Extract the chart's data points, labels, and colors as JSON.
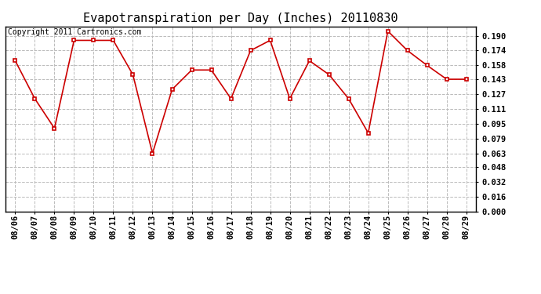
{
  "title": "Evapotranspiration per Day (Inches) 20110830",
  "copyright_text": "Copyright 2011 Cartronics.com",
  "x_labels": [
    "08/06",
    "08/07",
    "08/08",
    "08/09",
    "08/10",
    "08/11",
    "08/12",
    "08/13",
    "08/14",
    "08/15",
    "08/16",
    "08/17",
    "08/18",
    "08/19",
    "08/20",
    "08/21",
    "08/22",
    "08/23",
    "08/24",
    "08/25",
    "08/26",
    "08/27",
    "08/28",
    "08/29"
  ],
  "y_values": [
    0.163,
    0.122,
    0.09,
    0.185,
    0.185,
    0.185,
    0.148,
    0.063,
    0.132,
    0.153,
    0.153,
    0.122,
    0.174,
    0.185,
    0.122,
    0.163,
    0.148,
    0.122,
    0.085,
    0.195,
    0.174,
    0.158,
    0.143,
    0.143
  ],
  "line_color": "#cc0000",
  "marker_color": "#cc0000",
  "bg_color": "#ffffff",
  "grid_color": "#bbbbbb",
  "ylim_min": 0.0,
  "ylim_max": 0.2,
  "ytick_values": [
    0.0,
    0.016,
    0.032,
    0.048,
    0.063,
    0.079,
    0.095,
    0.111,
    0.127,
    0.143,
    0.158,
    0.174,
    0.19
  ],
  "title_fontsize": 11,
  "copyright_fontsize": 7,
  "tick_fontsize": 7.5
}
